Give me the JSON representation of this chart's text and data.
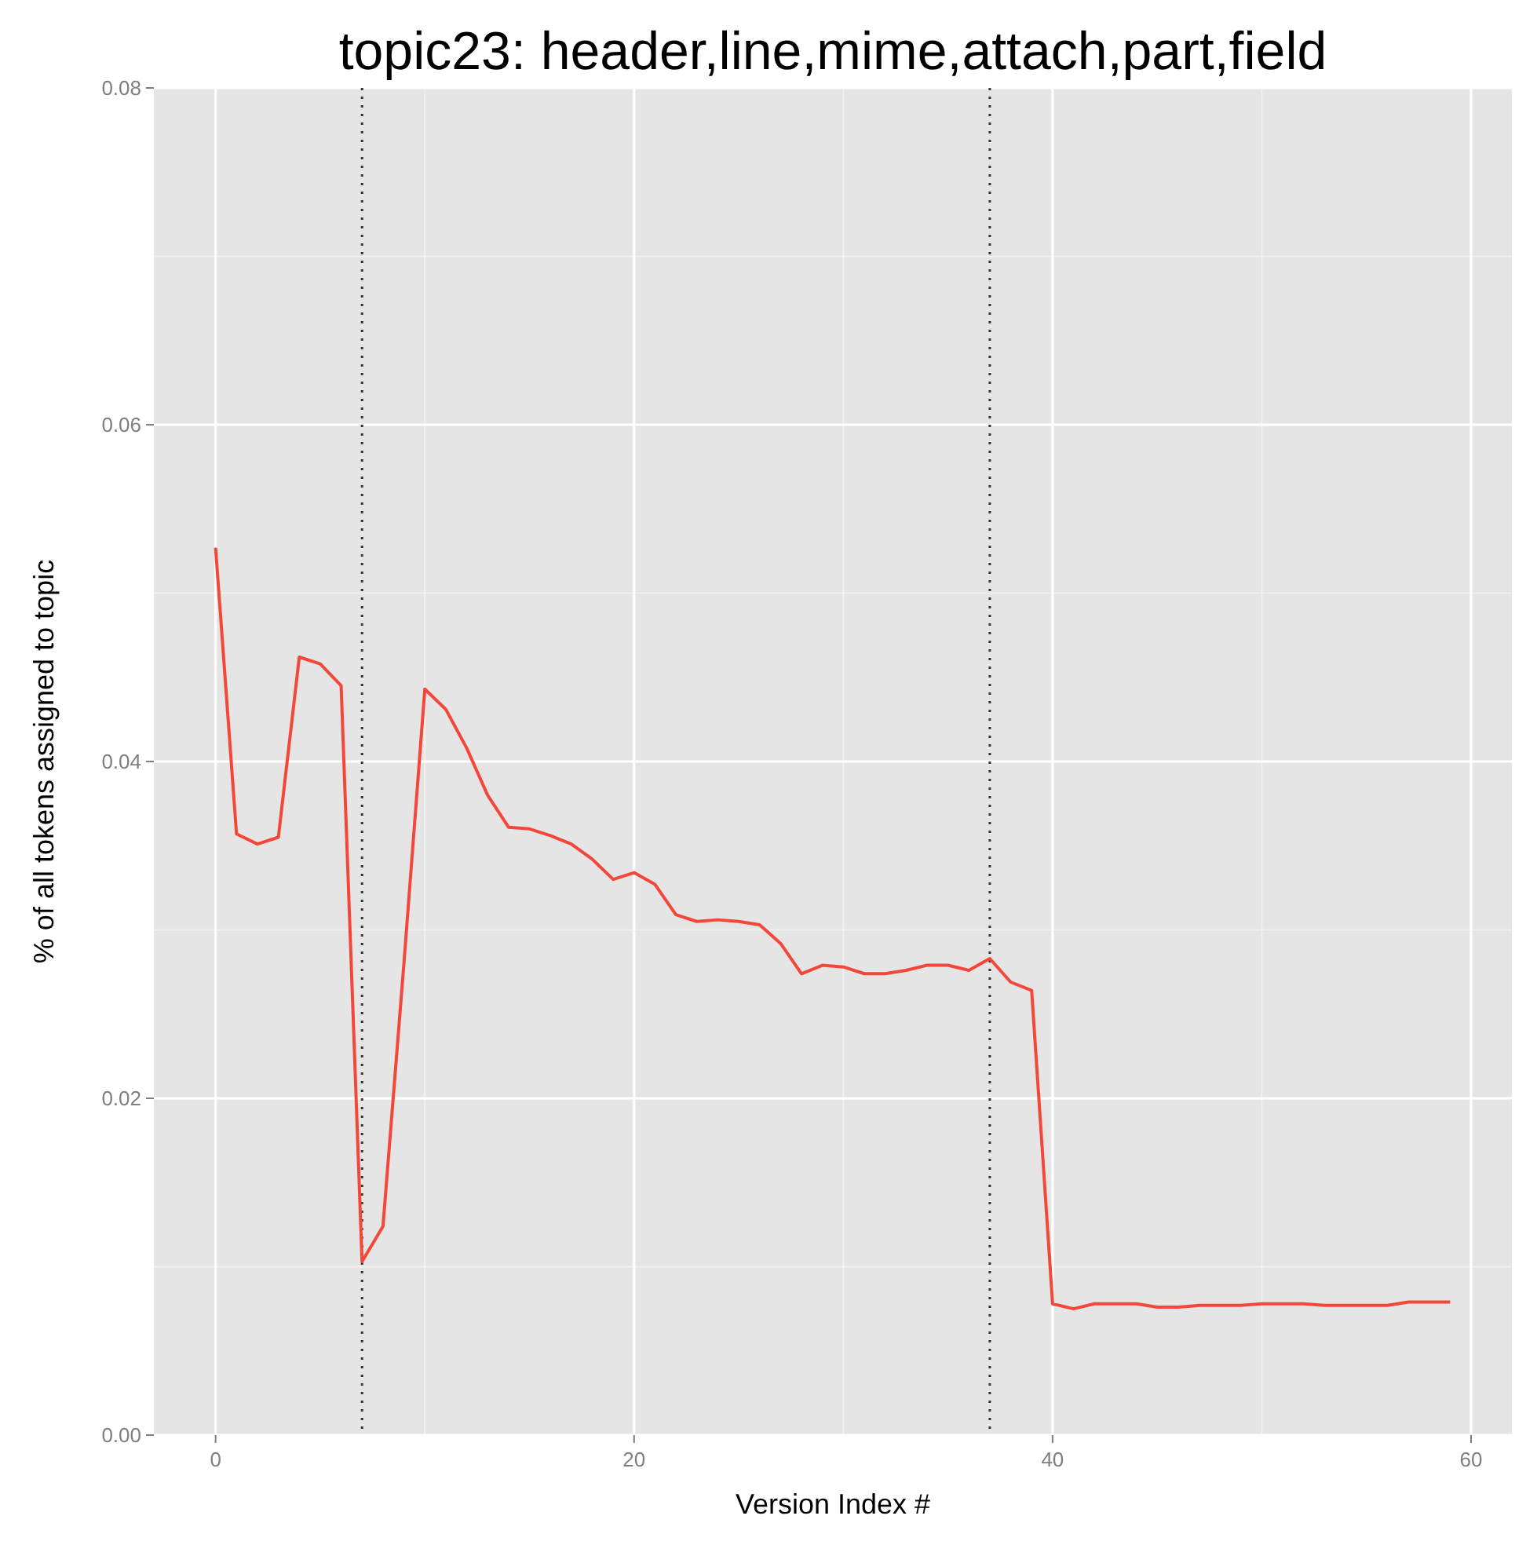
{
  "chart_data": {
    "type": "line",
    "title": "topic23: header,line,mime,attach,part,field",
    "xlabel": "Version Index #",
    "ylabel": "% of all tokens assigned to topic",
    "x": [
      0,
      1,
      2,
      3,
      4,
      5,
      6,
      7,
      8,
      9,
      10,
      11,
      12,
      13,
      14,
      15,
      16,
      17,
      18,
      19,
      20,
      21,
      22,
      23,
      24,
      25,
      26,
      27,
      28,
      29,
      30,
      31,
      32,
      33,
      34,
      35,
      36,
      37,
      38,
      39,
      40,
      41,
      42,
      43,
      44,
      45,
      46,
      47,
      48,
      49,
      50,
      51,
      52,
      53,
      54,
      55,
      56,
      57,
      58,
      59
    ],
    "series": [
      {
        "color": "#f4473a",
        "values": [
          0.0527,
          0.0357,
          0.0351,
          0.0355,
          0.0462,
          0.0458,
          0.0445,
          0.0103,
          0.0124,
          0.028,
          0.0443,
          0.0431,
          0.0408,
          0.038,
          0.0361,
          0.036,
          0.0356,
          0.0351,
          0.0342,
          0.033,
          0.0334,
          0.0327,
          0.0309,
          0.0305,
          0.0306,
          0.0305,
          0.0303,
          0.0292,
          0.0274,
          0.0279,
          0.0278,
          0.0274,
          0.0274,
          0.0276,
          0.0279,
          0.0279,
          0.0276,
          0.0283,
          0.0269,
          0.0264,
          0.0078,
          0.0075,
          0.0078,
          0.0078,
          0.0078,
          0.0076,
          0.0076,
          0.0077,
          0.0077,
          0.0077,
          0.0078,
          0.0078,
          0.0078,
          0.0077,
          0.0077,
          0.0077,
          0.0077,
          0.0079,
          0.0079,
          0.0079
        ]
      }
    ],
    "xlim": [
      -2.95,
      61.95
    ],
    "xticks": [
      0,
      20,
      40,
      60
    ],
    "ylim": [
      0,
      0.08
    ],
    "yticks": [
      {
        "value": 0,
        "label": "0.00"
      },
      {
        "value": 0.02,
        "label": "0.02"
      },
      {
        "value": 0.04,
        "label": "0.04"
      },
      {
        "value": 0.06,
        "label": "0.06"
      },
      {
        "value": 0.08,
        "label": "0.08"
      }
    ],
    "grid": true,
    "line_style": "solid",
    "ref_lines": [
      {
        "axis": "x",
        "value": 7,
        "line_style": "dotted",
        "color": "#333333"
      },
      {
        "axis": "x",
        "value": 37,
        "line_style": "dotted",
        "color": "#333333"
      }
    ]
  }
}
